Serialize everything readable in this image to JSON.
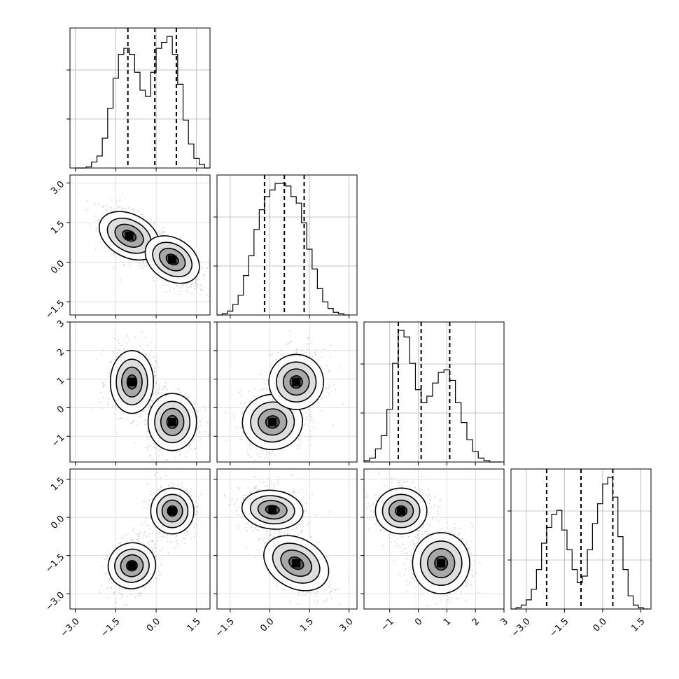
{
  "chart_data": {
    "type": "corner",
    "grid": true,
    "dimensions": 4,
    "parameters": [
      {
        "xlim": [
          -3.2,
          2.0
        ],
        "ticks": [
          -3.0,
          -1.5,
          0.0,
          1.5
        ],
        "tick_labels": [
          "−3.0",
          "−1.5",
          "0.0",
          "1.5"
        ],
        "quantiles": [
          -1.05,
          -0.05,
          0.75
        ]
      },
      {
        "xlim": [
          -2.0,
          3.3
        ],
        "ticks": [
          -1.5,
          0.0,
          1.5,
          3.0
        ],
        "tick_labels": [
          "−1.5",
          "0.0",
          "1.5",
          "3.0"
        ],
        "quantiles": [
          -0.2,
          0.55,
          1.3
        ]
      },
      {
        "xlim": [
          -1.9,
          3.0
        ],
        "ticks": [
          -1,
          0,
          1,
          2,
          3
        ],
        "tick_labels": [
          "−1",
          "0",
          "1",
          "2",
          "3"
        ],
        "quantiles": [
          -0.7,
          0.1,
          1.1
        ]
      },
      {
        "xlim": [
          -3.6,
          1.9
        ],
        "ticks": [
          -3.0,
          -1.5,
          0.0,
          1.5
        ],
        "tick_labels": [
          "−3.0",
          "−1.5",
          "0.0",
          "1.5"
        ],
        "quantiles": [
          -2.2,
          -0.85,
          0.4
        ]
      }
    ],
    "diagonal_histograms": [
      {
        "bins_center": [
          -2.9,
          -2.7,
          -2.5,
          -2.3,
          -2.1,
          -1.9,
          -1.7,
          -1.5,
          -1.3,
          -1.1,
          -0.9,
          -0.7,
          -0.5,
          -0.3,
          -0.1,
          0.1,
          0.3,
          0.5,
          0.7,
          0.9,
          1.1,
          1.3,
          1.5,
          1.7,
          1.9
        ],
        "counts": [
          0,
          0,
          0.01,
          0.05,
          0.1,
          0.25,
          0.5,
          0.75,
          0.95,
          1.0,
          0.95,
          0.8,
          0.65,
          0.6,
          0.8,
          1.0,
          1.05,
          1.1,
          0.95,
          0.7,
          0.4,
          0.2,
          0.08,
          0.03,
          0.0
        ]
      },
      {
        "bins_center": [
          -1.9,
          -1.7,
          -1.5,
          -1.3,
          -1.1,
          -0.9,
          -0.7,
          -0.5,
          -0.3,
          -0.1,
          0.1,
          0.3,
          0.5,
          0.7,
          0.9,
          1.1,
          1.3,
          1.5,
          1.7,
          1.9,
          2.1,
          2.3,
          2.5,
          2.7,
          2.9
        ],
        "counts": [
          0,
          0.01,
          0.03,
          0.08,
          0.15,
          0.3,
          0.45,
          0.65,
          0.8,
          0.9,
          0.95,
          1.0,
          1.0,
          0.98,
          0.9,
          0.85,
          0.7,
          0.5,
          0.35,
          0.2,
          0.1,
          0.05,
          0.02,
          0.01,
          0.0
        ]
      },
      {
        "bins_center": [
          -1.8,
          -1.6,
          -1.4,
          -1.2,
          -1.0,
          -0.8,
          -0.6,
          -0.4,
          -0.2,
          0.0,
          0.2,
          0.4,
          0.6,
          0.8,
          1.0,
          1.2,
          1.4,
          1.6,
          1.8,
          2.0,
          2.2,
          2.4,
          2.6,
          2.8
        ],
        "counts": [
          0.01,
          0.03,
          0.1,
          0.2,
          0.4,
          0.75,
          1.0,
          0.95,
          0.75,
          0.55,
          0.45,
          0.5,
          0.6,
          0.68,
          0.7,
          0.62,
          0.45,
          0.3,
          0.17,
          0.08,
          0.03,
          0.01,
          0.0,
          0.0
        ]
      },
      {
        "bins_center": [
          -3.5,
          -3.3,
          -3.1,
          -2.9,
          -2.7,
          -2.5,
          -2.3,
          -2.1,
          -1.9,
          -1.7,
          -1.5,
          -1.3,
          -1.1,
          -0.9,
          -0.7,
          -0.5,
          -0.3,
          -0.1,
          0.1,
          0.3,
          0.5,
          0.7,
          0.9,
          1.1,
          1.3,
          1.5,
          1.7
        ],
        "counts": [
          0,
          0.01,
          0.03,
          0.07,
          0.15,
          0.3,
          0.5,
          0.62,
          0.72,
          0.75,
          0.6,
          0.45,
          0.3,
          0.2,
          0.25,
          0.45,
          0.65,
          0.8,
          0.95,
          1.0,
          0.85,
          0.55,
          0.3,
          0.1,
          0.03,
          0.01,
          0.0
        ]
      }
    ],
    "pair_plots": [
      {
        "row": 1,
        "col": 0,
        "clusters": [
          {
            "cx": -1.0,
            "cy": 1.0,
            "sx": 0.5,
            "sy": 0.5,
            "rho": -0.55
          },
          {
            "cx": 0.6,
            "cy": 0.1,
            "sx": 0.45,
            "sy": 0.5,
            "rho": -0.6
          }
        ]
      },
      {
        "row": 2,
        "col": 0,
        "clusters": [
          {
            "cx": -0.9,
            "cy": 0.9,
            "sx": 0.4,
            "sy": 0.55,
            "rho": 0.0
          },
          {
            "cx": 0.6,
            "cy": -0.5,
            "sx": 0.45,
            "sy": 0.5,
            "rho": 0.0
          }
        ]
      },
      {
        "row": 2,
        "col": 1,
        "clusters": [
          {
            "cx": 0.1,
            "cy": -0.5,
            "sx": 0.55,
            "sy": 0.5,
            "rho": 0.1
          },
          {
            "cx": 1.0,
            "cy": 0.9,
            "sx": 0.5,
            "sy": 0.5,
            "rho": 0.1
          }
        ]
      },
      {
        "row": 3,
        "col": 0,
        "clusters": [
          {
            "cx": -0.9,
            "cy": -1.9,
            "sx": 0.4,
            "sy": 0.5,
            "rho": 0.3
          },
          {
            "cx": 0.6,
            "cy": 0.25,
            "sx": 0.4,
            "sy": 0.45,
            "rho": 0.0
          }
        ]
      },
      {
        "row": 3,
        "col": 1,
        "clusters": [
          {
            "cx": 0.1,
            "cy": 0.3,
            "sx": 0.55,
            "sy": 0.4,
            "rho": -0.15
          },
          {
            "cx": 1.0,
            "cy": -1.8,
            "sx": 0.55,
            "sy": 0.6,
            "rho": -0.55
          }
        ]
      },
      {
        "row": 3,
        "col": 2,
        "clusters": [
          {
            "cx": -0.6,
            "cy": 0.25,
            "sx": 0.45,
            "sy": 0.45,
            "rho": 0.0
          },
          {
            "cx": 0.8,
            "cy": -1.8,
            "sx": 0.5,
            "sy": 0.6,
            "rho": 0.0
          }
        ]
      }
    ],
    "y_axes": [
      {
        "row": 1,
        "ticks": [
          -1.5,
          0.0,
          1.5,
          3.0
        ],
        "tick_labels": [
          "−1.5",
          "0.0",
          "1.5",
          "3.0"
        ]
      },
      {
        "row": 2,
        "ticks": [
          -1,
          0,
          1,
          2,
          3
        ],
        "tick_labels": [
          "−1",
          "0",
          "1",
          "2",
          "3"
        ]
      },
      {
        "row": 3,
        "ticks": [
          -3.0,
          -1.5,
          0.0,
          1.5
        ],
        "tick_labels": [
          "−3.0",
          "−1.5",
          "0.0",
          "1.5"
        ]
      }
    ]
  }
}
